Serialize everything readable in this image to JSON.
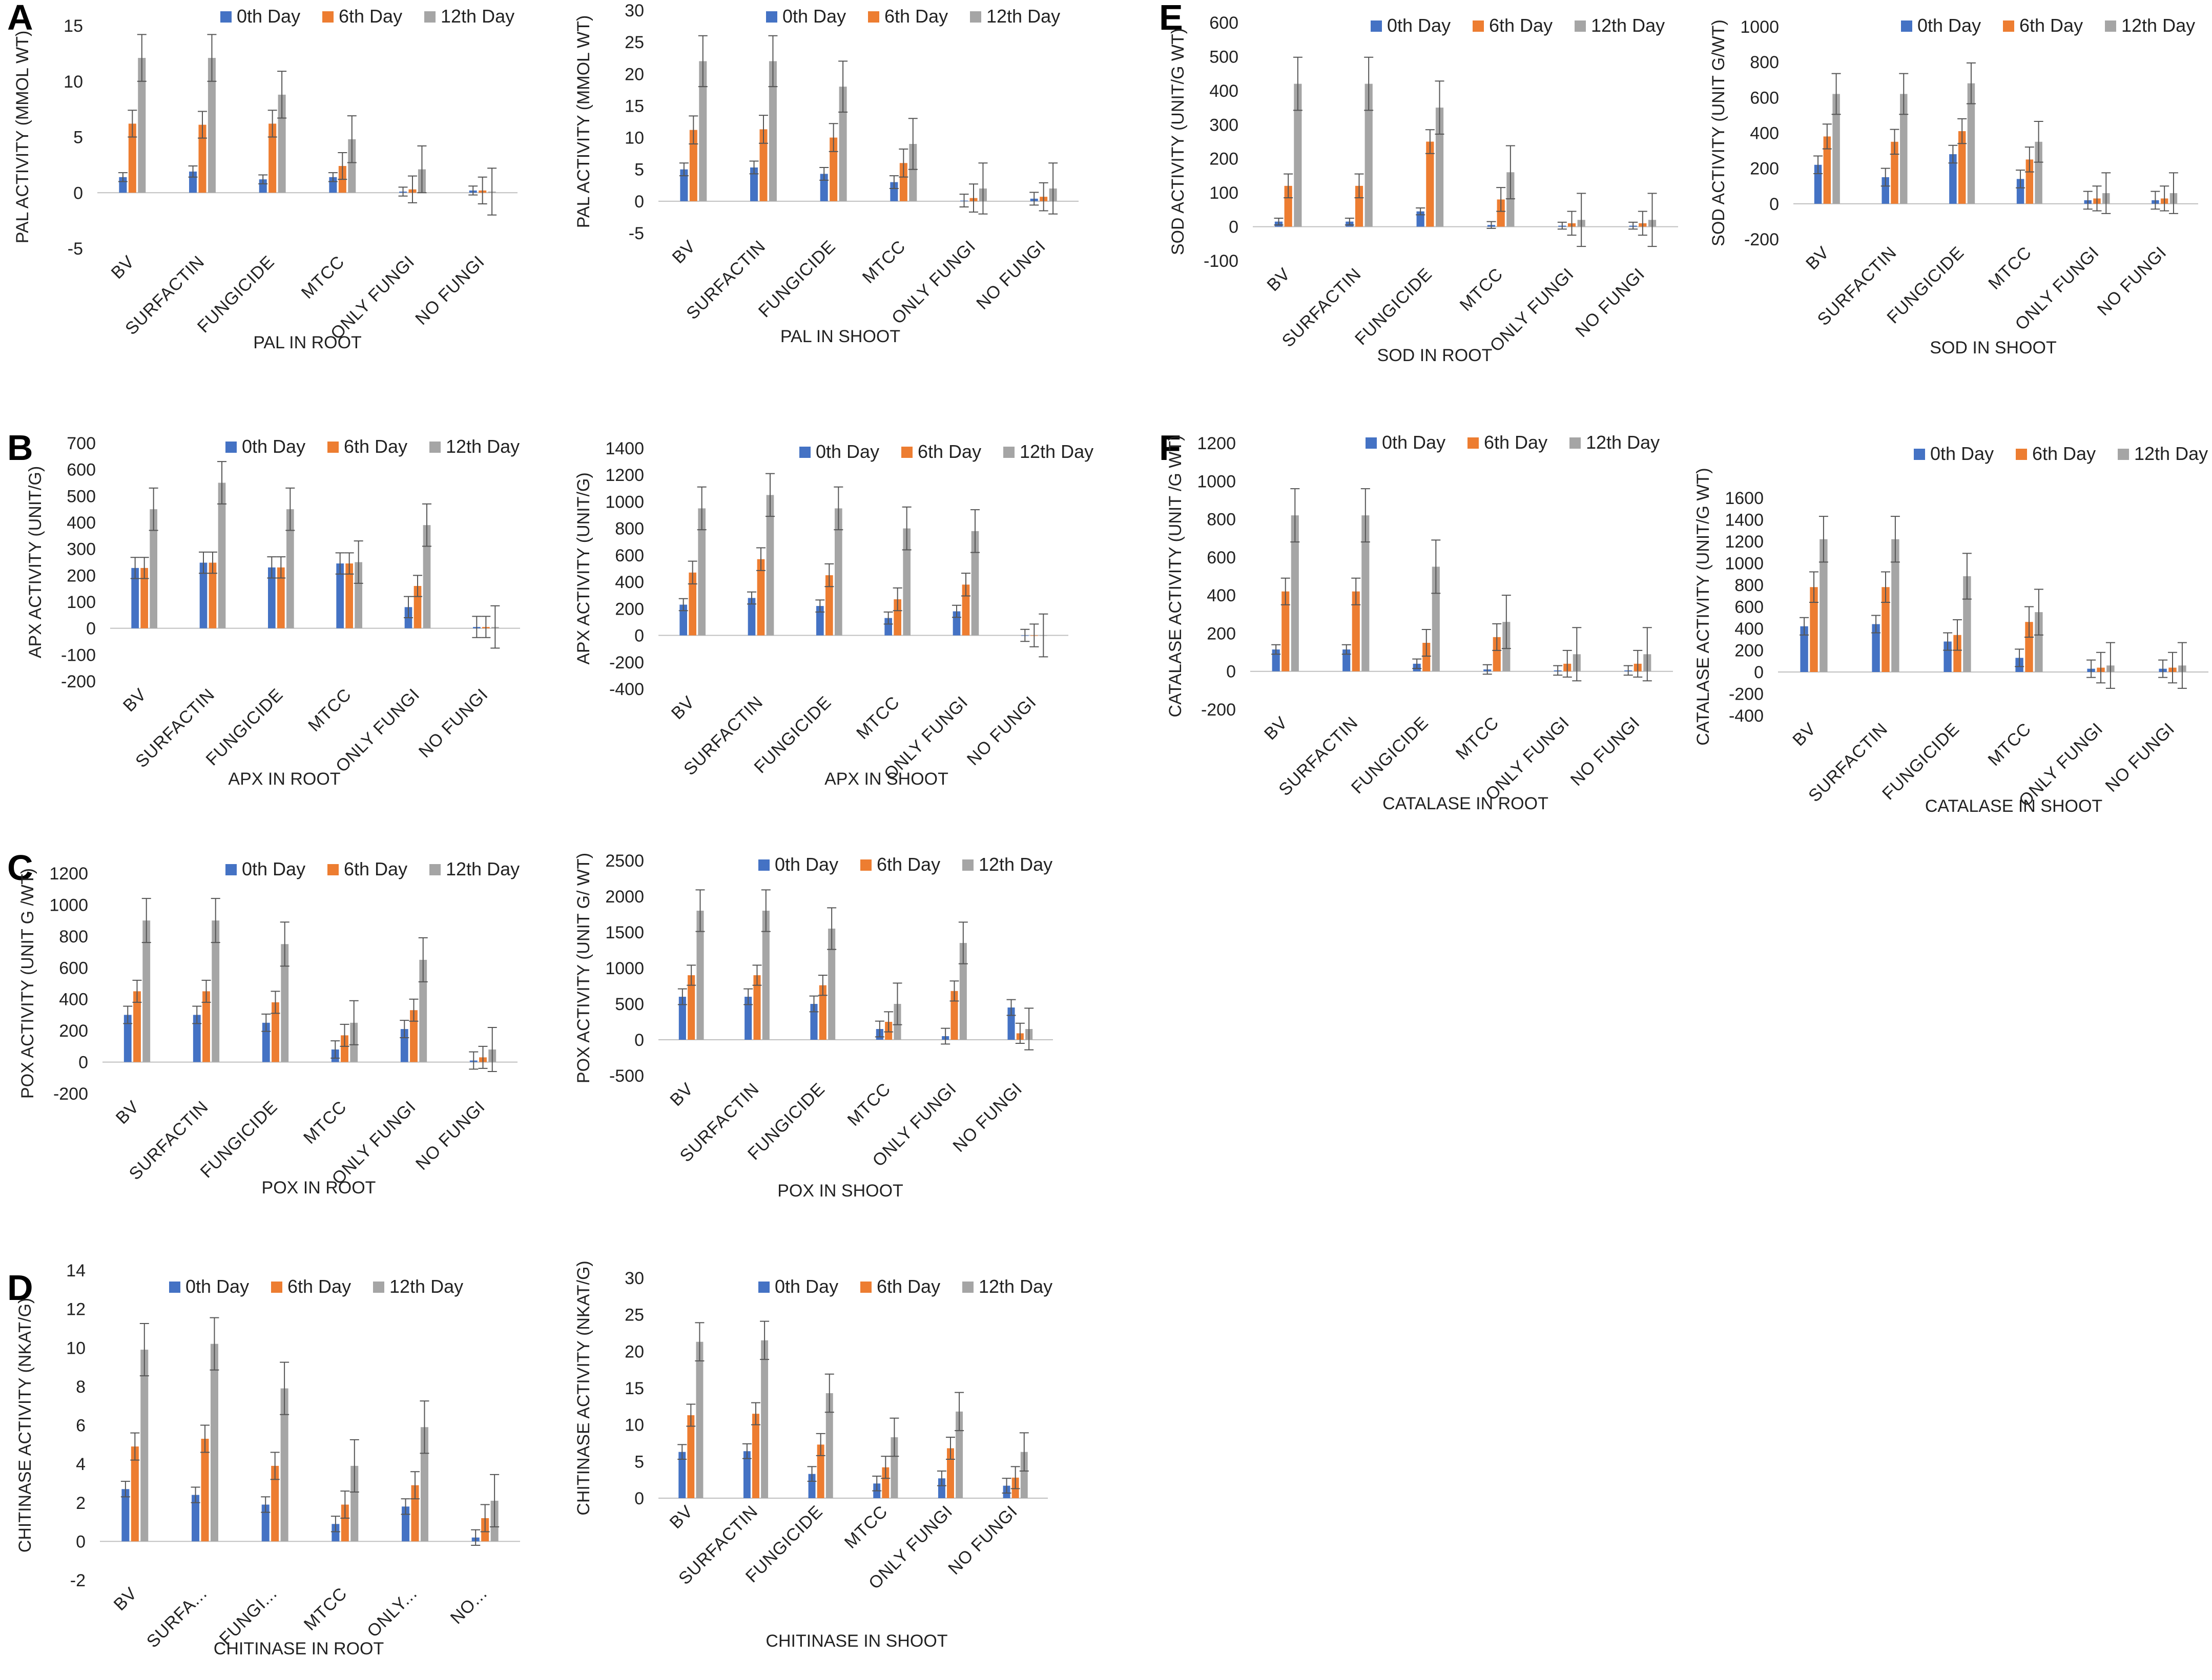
{
  "panels": [
    {
      "key": "A",
      "letter": "A"
    },
    {
      "key": "B",
      "letter": "B"
    },
    {
      "key": "C",
      "letter": "C"
    },
    {
      "key": "D",
      "letter": "D"
    },
    {
      "key": "E",
      "letter": "E"
    },
    {
      "key": "F",
      "letter": "F"
    }
  ],
  "colors": {
    "day0": "#4472C4",
    "day6": "#ED7D31",
    "day12": "#A5A5A5"
  },
  "chart_data": [
    {
      "id": "pal-root",
      "panel": "A",
      "type": "bar",
      "title": "PAL IN ROOT",
      "xlabel": "PAL IN ROOT",
      "ylabel": "PAL ACTIVITY (MMOL WT)",
      "ylim": [
        -5,
        15
      ],
      "ystep": 5,
      "categories": [
        "BV",
        "SURFACTIN",
        "FUNGICIDE",
        "MTCC",
        "ONLY FUNGI",
        "NO FUNGI"
      ],
      "series": [
        {
          "name": "0th Day",
          "values": [
            1.4,
            1.9,
            1.2,
            1.4,
            0.1,
            0.2
          ],
          "errors": [
            0.4,
            0.5,
            0.4,
            0.4,
            0.4,
            0.4
          ]
        },
        {
          "name": "6th Day",
          "values": [
            6.2,
            6.1,
            6.2,
            2.4,
            0.3,
            0.2
          ],
          "errors": [
            1.2,
            1.2,
            1.2,
            1.2,
            1.2,
            1.2
          ]
        },
        {
          "name": "12th Day",
          "values": [
            12.1,
            12.1,
            8.8,
            4.8,
            2.1,
            0.1
          ],
          "errors": [
            2.1,
            2.1,
            2.1,
            2.1,
            2.1,
            2.1
          ]
        }
      ]
    },
    {
      "id": "pal-shoot",
      "panel": "",
      "type": "bar",
      "title": "PAL IN SHOOT",
      "xlabel": "PAL IN SHOOT",
      "ylabel": "PAL ACTIVITY (MMOL WT)",
      "ylim": [
        -5,
        30
      ],
      "ystep": 5,
      "categories": [
        "BV",
        "SURFACTIN",
        "FUNGICIDE",
        "MTCC",
        "ONLY FUNGI",
        "NO FUNGI"
      ],
      "series": [
        {
          "name": "0th Day",
          "values": [
            5.0,
            5.3,
            4.3,
            3.0,
            0.1,
            0.4
          ],
          "errors": [
            1.0,
            1.0,
            1.0,
            1.0,
            1.0,
            1.0
          ]
        },
        {
          "name": "6th Day",
          "values": [
            11.2,
            11.3,
            10.0,
            6.0,
            0.5,
            0.7
          ],
          "errors": [
            2.2,
            2.2,
            2.2,
            2.2,
            2.2,
            2.2
          ]
        },
        {
          "name": "12th Day",
          "values": [
            22.0,
            22.0,
            18.0,
            9.0,
            2.0,
            2.0
          ],
          "errors": [
            4.0,
            4.0,
            4.0,
            4.0,
            4.0,
            4.0
          ]
        }
      ]
    },
    {
      "id": "apx-root",
      "panel": "B",
      "type": "bar",
      "title": "APX IN ROOT",
      "xlabel": "APX IN ROOT",
      "ylabel": "APX ACTIVITY (UNIT/G)",
      "ylim": [
        -200,
        700
      ],
      "ystep": 100,
      "categories": [
        "BV",
        "SURFACTIN",
        "FUNGICIDE",
        "MTCC",
        "ONLY FUNGI",
        "NO FUNGI"
      ],
      "series": [
        {
          "name": "0th Day",
          "values": [
            228,
            248,
            230,
            245,
            80,
            5
          ],
          "errors": [
            40,
            40,
            40,
            40,
            40,
            40
          ]
        },
        {
          "name": "6th Day",
          "values": [
            228,
            248,
            230,
            245,
            160,
            5
          ],
          "errors": [
            40,
            40,
            40,
            40,
            40,
            40
          ]
        },
        {
          "name": "12th Day",
          "values": [
            450,
            550,
            450,
            250,
            390,
            5
          ],
          "errors": [
            80,
            80,
            80,
            80,
            80,
            80
          ]
        }
      ]
    },
    {
      "id": "apx-shoot",
      "panel": "",
      "type": "bar",
      "title": "APX IN SHOOT",
      "xlabel": "APX IN SHOOT",
      "ylabel": "APX ACTIVITY (UNIT/G)",
      "ylim": [
        -400,
        1400
      ],
      "ystep": 200,
      "categories": [
        "BV",
        "SURFACTIN",
        "FUNGICIDE",
        "MTCC",
        "ONLY FUNGI",
        "NO FUNGI"
      ],
      "series": [
        {
          "name": "0th Day",
          "values": [
            230,
            280,
            220,
            130,
            180,
            0
          ],
          "errors": [
            45,
            45,
            45,
            45,
            45,
            45
          ]
        },
        {
          "name": "6th Day",
          "values": [
            470,
            570,
            450,
            270,
            380,
            0
          ],
          "errors": [
            85,
            85,
            85,
            85,
            85,
            85
          ]
        },
        {
          "name": "12th Day",
          "values": [
            950,
            1050,
            950,
            800,
            780,
            0
          ],
          "errors": [
            160,
            160,
            160,
            160,
            160,
            160
          ]
        }
      ]
    },
    {
      "id": "pox-root",
      "panel": "C",
      "type": "bar",
      "title": "POX IN ROOT",
      "xlabel": "POX IN ROOT",
      "ylabel": "POX ACTIVITY (UNIT G /WT)",
      "ylim": [
        -200,
        1200
      ],
      "ystep": 200,
      "categories": [
        "BV",
        "SURFACTIN",
        "FUNGICIDE",
        "MTCC",
        "ONLY FUNGI",
        "NO FUNGI"
      ],
      "series": [
        {
          "name": "0th Day",
          "values": [
            300,
            300,
            250,
            80,
            210,
            10
          ],
          "errors": [
            55,
            55,
            55,
            55,
            55,
            55
          ]
        },
        {
          "name": "6th Day",
          "values": [
            450,
            450,
            380,
            170,
            330,
            30
          ],
          "errors": [
            70,
            70,
            70,
            70,
            70,
            70
          ]
        },
        {
          "name": "12th Day",
          "values": [
            900,
            900,
            750,
            250,
            650,
            80
          ],
          "errors": [
            140,
            140,
            140,
            140,
            140,
            140
          ]
        }
      ]
    },
    {
      "id": "pox-shoot",
      "panel": "",
      "type": "bar",
      "title": "POX IN SHOOT",
      "xlabel": "POX IN SHOOT",
      "ylabel": "POX ACTIVITY (UNIT G/ WT)",
      "ylim": [
        -500,
        2500
      ],
      "ystep": 500,
      "categories": [
        "BV",
        "SURFACTIN",
        "FUNGICIDE",
        "MTCC",
        "ONLY FUNGI",
        "NO FUNGI"
      ],
      "series": [
        {
          "name": "0th Day",
          "values": [
            600,
            600,
            500,
            150,
            50,
            450
          ],
          "errors": [
            110,
            110,
            110,
            110,
            110,
            110
          ]
        },
        {
          "name": "6th Day",
          "values": [
            900,
            900,
            760,
            250,
            680,
            90
          ],
          "errors": [
            140,
            140,
            140,
            140,
            140,
            140
          ]
        },
        {
          "name": "12th Day",
          "values": [
            1800,
            1800,
            1550,
            500,
            1350,
            150
          ],
          "errors": [
            290,
            290,
            290,
            290,
            290,
            290
          ]
        }
      ]
    },
    {
      "id": "chit-root",
      "panel": "D",
      "type": "bar",
      "title": "CHITINASE IN ROOT",
      "xlabel": "CHITINASE IN ROOT",
      "ylabel": "CHITINASE ACTIVITY (NKAT/G)",
      "ylim": [
        -2,
        14
      ],
      "ystep": 2,
      "categories": [
        "BV",
        "SURFA...",
        "FUNGI...",
        "MTCC",
        "ONLY...",
        "NO..."
      ],
      "series": [
        {
          "name": "0th Day",
          "values": [
            2.7,
            2.4,
            1.9,
            0.9,
            1.8,
            0.2
          ],
          "errors": [
            0.4,
            0.4,
            0.4,
            0.4,
            0.4,
            0.4
          ]
        },
        {
          "name": "6th Day",
          "values": [
            4.9,
            5.3,
            3.9,
            1.9,
            2.9,
            1.2
          ],
          "errors": [
            0.7,
            0.7,
            0.7,
            0.7,
            0.7,
            0.7
          ]
        },
        {
          "name": "12th Day",
          "values": [
            9.9,
            10.2,
            7.9,
            3.9,
            5.9,
            2.1
          ],
          "errors": [
            1.35,
            1.35,
            1.35,
            1.35,
            1.35,
            1.35
          ]
        }
      ]
    },
    {
      "id": "chit-shoot",
      "panel": "",
      "type": "bar",
      "title": "CHITINASE IN SHOOT",
      "xlabel": "CHITINASE IN SHOOT",
      "ylabel": "CHITINASE ACTIVITY (NKAT/G)",
      "ylim": [
        0,
        30
      ],
      "ystep": 5,
      "categories": [
        "BV",
        "SURFACTIN",
        "FUNGICIDE",
        "MTCC",
        "ONLY FUNGI",
        "NO FUNGI"
      ],
      "series": [
        {
          "name": "0th Day",
          "values": [
            6.3,
            6.4,
            3.3,
            2.0,
            2.7,
            1.7
          ],
          "errors": [
            1.0,
            1.0,
            1.0,
            1.0,
            1.0,
            1.0
          ]
        },
        {
          "name": "6th Day",
          "values": [
            11.3,
            11.5,
            7.3,
            4.2,
            6.8,
            2.8
          ],
          "errors": [
            1.5,
            1.5,
            1.5,
            1.5,
            1.5,
            1.5
          ]
        },
        {
          "name": "12th Day",
          "values": [
            21.3,
            21.5,
            14.3,
            8.3,
            11.8,
            6.3
          ],
          "errors": [
            2.6,
            2.6,
            2.6,
            2.6,
            2.6,
            2.6
          ]
        }
      ]
    },
    {
      "id": "sod-root",
      "panel": "E",
      "type": "bar",
      "title": "SOD IN ROOT",
      "xlabel": "SOD IN ROOT",
      "ylabel": "SOD ACTIVITY (UNIT/G WT)",
      "ylim": [
        -100,
        600
      ],
      "ystep": 100,
      "categories": [
        "BV",
        "SURFACTIN",
        "FUNGICIDE",
        "MTCC",
        "ONLY FUNGI",
        "NO FUNGI"
      ],
      "series": [
        {
          "name": "0th Day",
          "values": [
            15,
            15,
            45,
            5,
            3,
            3
          ],
          "errors": [
            10,
            10,
            10,
            10,
            10,
            10
          ]
        },
        {
          "name": "6th Day",
          "values": [
            120,
            120,
            250,
            80,
            10,
            10
          ],
          "errors": [
            35,
            35,
            35,
            35,
            35,
            35
          ]
        },
        {
          "name": "12th Day",
          "values": [
            420,
            420,
            350,
            160,
            20,
            20
          ],
          "errors": [
            78,
            78,
            78,
            78,
            78,
            78
          ]
        }
      ]
    },
    {
      "id": "sod-shoot",
      "panel": "",
      "type": "bar",
      "title": "SOD IN SHOOT",
      "xlabel": "SOD IN SHOOT",
      "ylabel": "SOD ACTIVITY (UNIT G/WT)",
      "ylim": [
        -200,
        1000
      ],
      "ystep": 200,
      "categories": [
        "BV",
        "SURFACTIN",
        "FUNGICIDE",
        "MTCC",
        "ONLY FUNGI",
        "NO FUNGI"
      ],
      "series": [
        {
          "name": "0th Day",
          "values": [
            220,
            150,
            280,
            140,
            20,
            20
          ],
          "errors": [
            50,
            50,
            50,
            50,
            50,
            50
          ]
        },
        {
          "name": "6th Day",
          "values": [
            380,
            350,
            410,
            250,
            30,
            30
          ],
          "errors": [
            70,
            70,
            70,
            70,
            70,
            70
          ]
        },
        {
          "name": "12th Day",
          "values": [
            620,
            620,
            680,
            350,
            60,
            60
          ],
          "errors": [
            115,
            115,
            115,
            115,
            115,
            115
          ]
        }
      ]
    },
    {
      "id": "cat-root",
      "panel": "F",
      "type": "bar",
      "title": "CATALASE IN ROOT",
      "xlabel": "CATALASE IN ROOT",
      "ylabel": "CATALASE ACTIVITY (UNIT /G WT)",
      "ylim": [
        -200,
        1200
      ],
      "ystep": 200,
      "categories": [
        "BV",
        "SURFACTIN",
        "FUNGICIDE",
        "MTCC",
        "ONLY FUNGI",
        "NO FUNGI"
      ],
      "series": [
        {
          "name": "0th Day",
          "values": [
            115,
            115,
            40,
            10,
            5,
            5
          ],
          "errors": [
            25,
            25,
            25,
            25,
            25,
            25
          ]
        },
        {
          "name": "6th Day",
          "values": [
            420,
            420,
            150,
            180,
            40,
            40
          ],
          "errors": [
            70,
            70,
            70,
            70,
            70,
            70
          ]
        },
        {
          "name": "12th Day",
          "values": [
            820,
            820,
            550,
            260,
            90,
            90
          ],
          "errors": [
            140,
            140,
            140,
            140,
            140,
            140
          ]
        }
      ]
    },
    {
      "id": "cat-shoot",
      "panel": "",
      "type": "bar",
      "title": "CATALASE IN SHOOT",
      "xlabel": "CATALASE IN SHOOT",
      "ylabel": "CATALASE  ACTIVITY (UNIT/G WT)",
      "ylim": [
        -400,
        1600
      ],
      "ystep": 200,
      "categories": [
        "BV",
        "SURFACTIN",
        "FUNGICIDE",
        "MTCC",
        "ONLY FUNGI",
        "NO FUNGI"
      ],
      "series": [
        {
          "name": "0th Day",
          "values": [
            420,
            440,
            280,
            130,
            30,
            30
          ],
          "errors": [
            80,
            80,
            80,
            80,
            80,
            80
          ]
        },
        {
          "name": "6th Day",
          "values": [
            780,
            780,
            340,
            460,
            40,
            40
          ],
          "errors": [
            140,
            140,
            140,
            140,
            140,
            140
          ]
        },
        {
          "name": "12th Day",
          "values": [
            1220,
            1220,
            880,
            550,
            60,
            60
          ],
          "errors": [
            210,
            210,
            210,
            210,
            210,
            210
          ]
        }
      ]
    }
  ]
}
